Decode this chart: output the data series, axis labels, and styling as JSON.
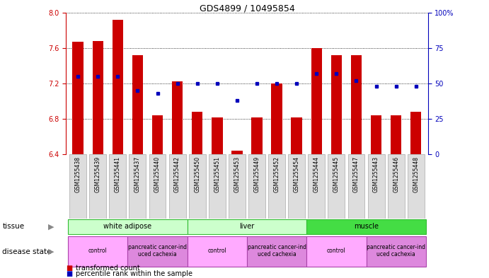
{
  "title": "GDS4899 / 10495854",
  "samples": [
    "GSM1255438",
    "GSM1255439",
    "GSM1255441",
    "GSM1255437",
    "GSM1255440",
    "GSM1255442",
    "GSM1255450",
    "GSM1255451",
    "GSM1255453",
    "GSM1255449",
    "GSM1255452",
    "GSM1255454",
    "GSM1255444",
    "GSM1255445",
    "GSM1255447",
    "GSM1255443",
    "GSM1255446",
    "GSM1255448"
  ],
  "bar_values": [
    7.67,
    7.68,
    7.92,
    7.52,
    6.84,
    7.22,
    6.88,
    6.82,
    6.44,
    6.82,
    7.2,
    6.82,
    7.6,
    7.52,
    7.52,
    6.84,
    6.84,
    6.88
  ],
  "dot_values": [
    55,
    55,
    55,
    45,
    43,
    50,
    50,
    50,
    38,
    50,
    50,
    50,
    57,
    57,
    52,
    48,
    48,
    48
  ],
  "ylim_left": [
    6.4,
    8.0
  ],
  "ylim_right": [
    0,
    100
  ],
  "yticks_left": [
    6.4,
    6.8,
    7.2,
    7.6,
    8.0
  ],
  "yticks_right": [
    0,
    25,
    50,
    75,
    100
  ],
  "bar_color": "#cc0000",
  "dot_color": "#0000bb",
  "tissue_groups": [
    {
      "label": "white adipose",
      "start": 0,
      "end": 6,
      "color": "#ccffcc"
    },
    {
      "label": "liver",
      "start": 6,
      "end": 12,
      "color": "#ccffcc"
    },
    {
      "label": "muscle",
      "start": 12,
      "end": 18,
      "color": "#44dd44"
    }
  ],
  "disease_groups": [
    {
      "label": "control",
      "start": 0,
      "end": 3,
      "color": "#ffaaff"
    },
    {
      "label": "pancreatic cancer-ind\nuced cachexia",
      "start": 3,
      "end": 6,
      "color": "#dd88dd"
    },
    {
      "label": "control",
      "start": 6,
      "end": 9,
      "color": "#ffaaff"
    },
    {
      "label": "pancreatic cancer-ind\nuced cachexia",
      "start": 9,
      "end": 12,
      "color": "#dd88dd"
    },
    {
      "label": "control",
      "start": 12,
      "end": 15,
      "color": "#ffaaff"
    },
    {
      "label": "pancreatic cancer-ind\nuced cachexia",
      "start": 15,
      "end": 18,
      "color": "#dd88dd"
    }
  ],
  "background_color": "#ffffff",
  "left_axis_color": "#cc0000",
  "right_axis_color": "#0000bb",
  "xticklabel_bg": "#dddddd"
}
